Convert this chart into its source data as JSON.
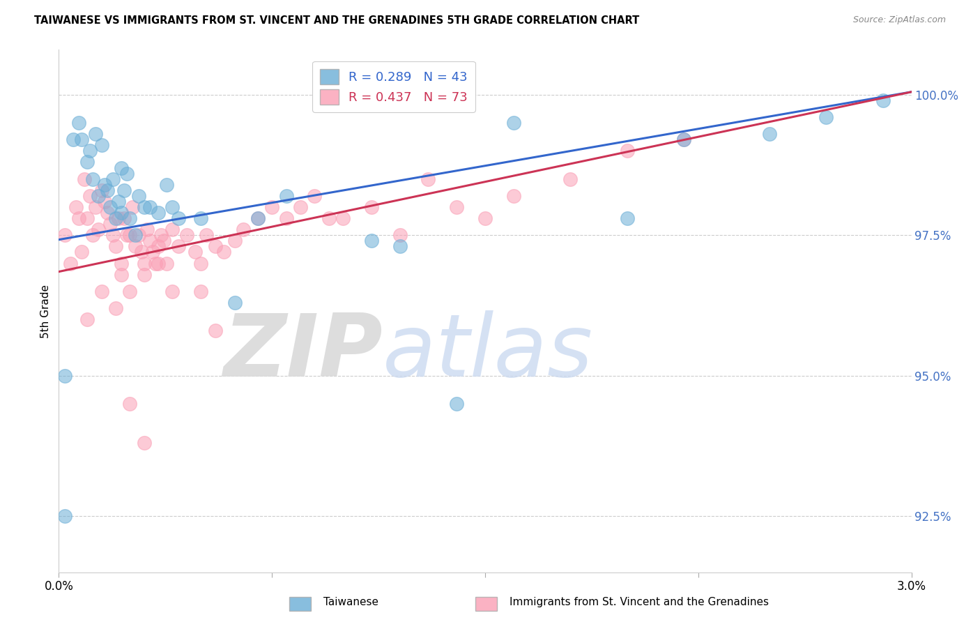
{
  "title": "TAIWANESE VS IMMIGRANTS FROM ST. VINCENT AND THE GRENADINES 5TH GRADE CORRELATION CHART",
  "source": "Source: ZipAtlas.com",
  "ylabel": "5th Grade",
  "ylabel_ticks": [
    92.5,
    95.0,
    97.5,
    100.0
  ],
  "ylabel_tick_labels": [
    "92.5%",
    "95.0%",
    "97.5%",
    "100.0%"
  ],
  "xlim": [
    0.0,
    3.0
  ],
  "ylim": [
    91.5,
    100.8
  ],
  "blue_R": 0.289,
  "blue_N": 43,
  "pink_R": 0.437,
  "pink_N": 73,
  "blue_label": "Taiwanese",
  "pink_label": "Immigrants from St. Vincent and the Grenadines",
  "blue_color": "#6baed6",
  "pink_color": "#fa9fb5",
  "blue_line_color": "#3366cc",
  "pink_line_color": "#cc3355",
  "background_color": "#ffffff",
  "blue_x": [
    0.02,
    0.05,
    0.07,
    0.08,
    0.1,
    0.11,
    0.12,
    0.13,
    0.14,
    0.15,
    0.16,
    0.17,
    0.18,
    0.19,
    0.2,
    0.21,
    0.22,
    0.22,
    0.23,
    0.24,
    0.25,
    0.27,
    0.28,
    0.3,
    0.32,
    0.35,
    0.38,
    0.4,
    0.42,
    0.5,
    0.62,
    0.7,
    0.8,
    1.1,
    1.2,
    1.4,
    1.6,
    2.0,
    2.2,
    2.5,
    2.7,
    2.9,
    0.02
  ],
  "blue_y": [
    95.0,
    99.2,
    99.5,
    99.2,
    98.8,
    99.0,
    98.5,
    99.3,
    98.2,
    99.1,
    98.4,
    98.3,
    98.0,
    98.5,
    97.8,
    98.1,
    97.9,
    98.7,
    98.3,
    98.6,
    97.8,
    97.5,
    98.2,
    98.0,
    98.0,
    97.9,
    98.4,
    98.0,
    97.8,
    97.8,
    96.3,
    97.8,
    98.2,
    97.4,
    97.3,
    94.5,
    99.5,
    97.8,
    99.2,
    99.3,
    99.6,
    99.9,
    92.5
  ],
  "pink_x": [
    0.02,
    0.04,
    0.06,
    0.07,
    0.08,
    0.09,
    0.1,
    0.11,
    0.12,
    0.13,
    0.14,
    0.15,
    0.16,
    0.17,
    0.18,
    0.19,
    0.2,
    0.21,
    0.22,
    0.23,
    0.24,
    0.25,
    0.26,
    0.27,
    0.28,
    0.29,
    0.3,
    0.31,
    0.32,
    0.33,
    0.34,
    0.35,
    0.36,
    0.37,
    0.38,
    0.4,
    0.42,
    0.45,
    0.48,
    0.5,
    0.52,
    0.55,
    0.58,
    0.62,
    0.65,
    0.7,
    0.75,
    0.8,
    0.85,
    0.9,
    0.95,
    1.0,
    1.1,
    1.2,
    1.3,
    1.4,
    1.5,
    1.6,
    1.8,
    2.0,
    2.2,
    0.1,
    0.15,
    0.2,
    0.22,
    0.25,
    0.3,
    0.35,
    0.4,
    0.5,
    0.55,
    0.25,
    0.3
  ],
  "pink_y": [
    97.5,
    97.0,
    98.0,
    97.8,
    97.2,
    98.5,
    97.8,
    98.2,
    97.5,
    98.0,
    97.6,
    98.3,
    98.1,
    97.9,
    97.7,
    97.5,
    97.3,
    97.8,
    97.0,
    97.8,
    97.5,
    97.5,
    98.0,
    97.3,
    97.5,
    97.2,
    97.0,
    97.6,
    97.4,
    97.2,
    97.0,
    97.3,
    97.5,
    97.4,
    97.0,
    97.6,
    97.3,
    97.5,
    97.2,
    97.0,
    97.5,
    97.3,
    97.2,
    97.4,
    97.6,
    97.8,
    98.0,
    97.8,
    98.0,
    98.2,
    97.8,
    97.8,
    98.0,
    97.5,
    98.5,
    98.0,
    97.8,
    98.2,
    98.5,
    99.0,
    99.2,
    96.0,
    96.5,
    96.2,
    96.8,
    96.5,
    96.8,
    97.0,
    96.5,
    96.5,
    95.8,
    94.5,
    93.8
  ]
}
